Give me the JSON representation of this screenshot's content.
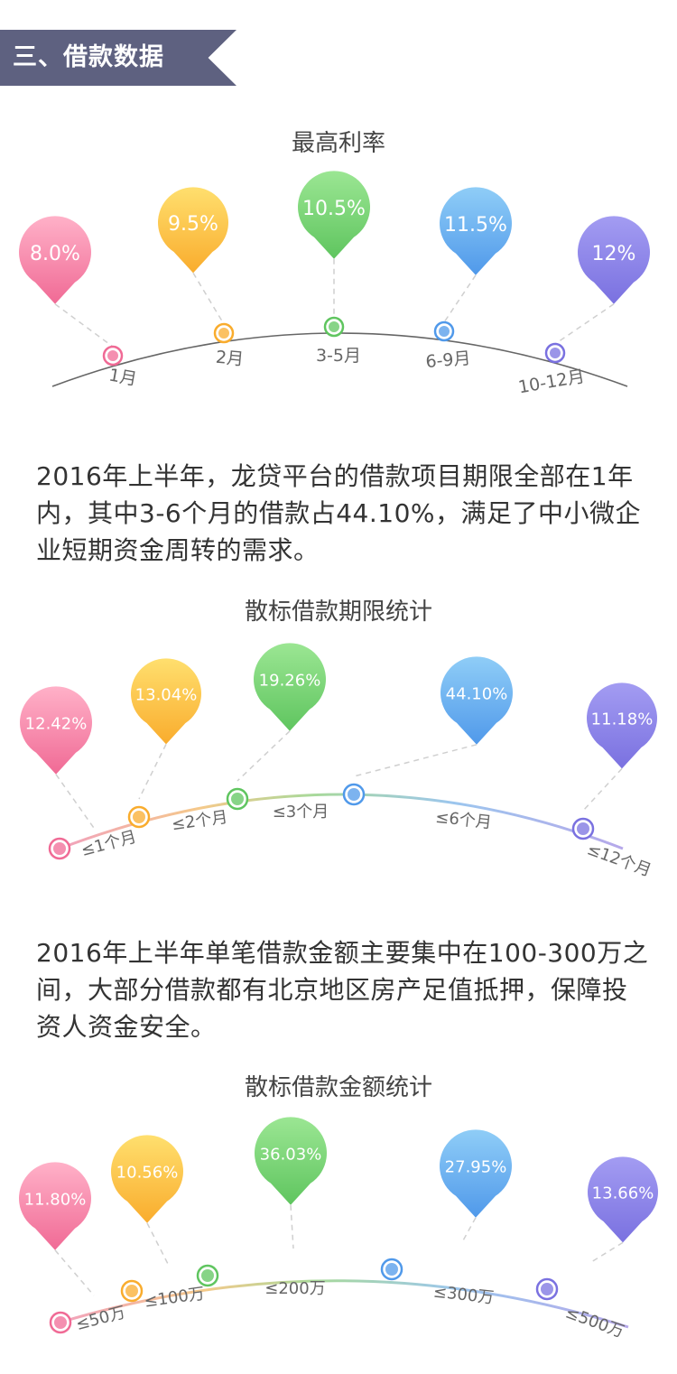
{
  "section": {
    "title": "三、借款数据"
  },
  "charts": [
    {
      "title": "最高利率",
      "values": [
        "8.0%",
        "9.5%",
        "10.5%",
        "11.5%",
        "12%"
      ],
      "labels": [
        "1月",
        "2月",
        "3-5月",
        "6-9月",
        "10-12月"
      ]
    },
    {
      "title": "散标借款期限统计",
      "values": [
        "12.42%",
        "13.04%",
        "19.26%",
        "44.10%",
        "11.18%"
      ],
      "labels": [
        "≤1个月",
        "≤2个月",
        "≤3个月",
        "≤6个月",
        "≤12个月"
      ]
    },
    {
      "title": "散标借款金额统计",
      "values": [
        "11.80%",
        "10.56%",
        "36.03%",
        "27.95%",
        "13.66%"
      ],
      "labels": [
        "≤50万",
        "≤100万",
        "≤200万",
        "≤300万",
        "≤500万"
      ]
    }
  ],
  "paragraphs": [
    "2016年上半年，龙贷平台的借款项目期限全部在1年内，其中3-6个月的借款占44.10%，满足了中小微企业短期资金周转的需求。",
    "2016年上半年单笔借款金额主要集中在100-300万之间，大部分借款都有北京地区房产足值抵押，保障投资人资金安全。"
  ],
  "colors": {
    "banner": "#5e6180",
    "pink": "#f06a95",
    "orange": "#f9ac2d",
    "green": "#5fc55f",
    "blue": "#5099ea",
    "purple": "#7a71e0"
  }
}
